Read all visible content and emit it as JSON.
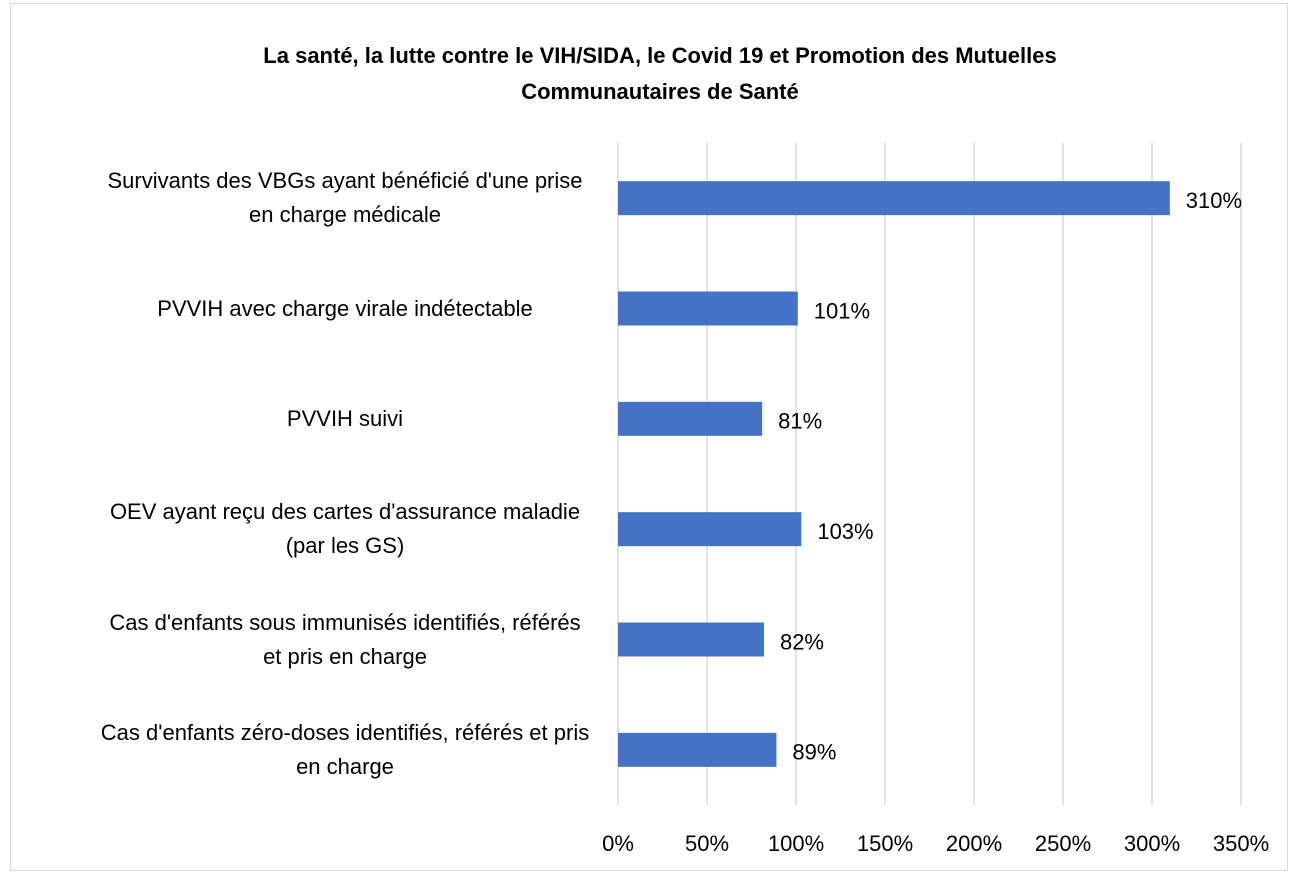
{
  "chart_data": {
    "type": "barh",
    "title": "La santé, la lutte contre le VIH/SIDA, le Covid 19 et Promotion des Mutuelles Communautaires de Santé",
    "categories": [
      "Survivants des VBGs ayant bénéficié d'une prise en charge médicale",
      "PVVIH avec charge virale indétectable",
      "PVVIH suivi",
      "OEV ayant reçu des cartes d'assurance maladie (par les GS)",
      "Cas d'enfants sous immunisés identifiés, référés et pris en charge",
      "Cas d'enfants zéro-doses identifiés, référés et pris en charge"
    ],
    "values": [
      310,
      101,
      81,
      103,
      82,
      89
    ],
    "value_labels": [
      "310%",
      "101%",
      "81%",
      "103%",
      "82%",
      "89%"
    ],
    "color": "#4472c4",
    "xlim": [
      0,
      350
    ],
    "xticks": [
      {
        "value": 0,
        "label": "0%"
      },
      {
        "value": 50,
        "label": "50%"
      },
      {
        "value": 100,
        "label": "100%"
      },
      {
        "value": 150,
        "label": "150%"
      },
      {
        "value": 200,
        "label": "200%"
      },
      {
        "value": 250,
        "label": "250%"
      },
      {
        "value": 300,
        "label": "300%"
      },
      {
        "value": 350,
        "label": "350%"
      }
    ],
    "grid": true
  }
}
